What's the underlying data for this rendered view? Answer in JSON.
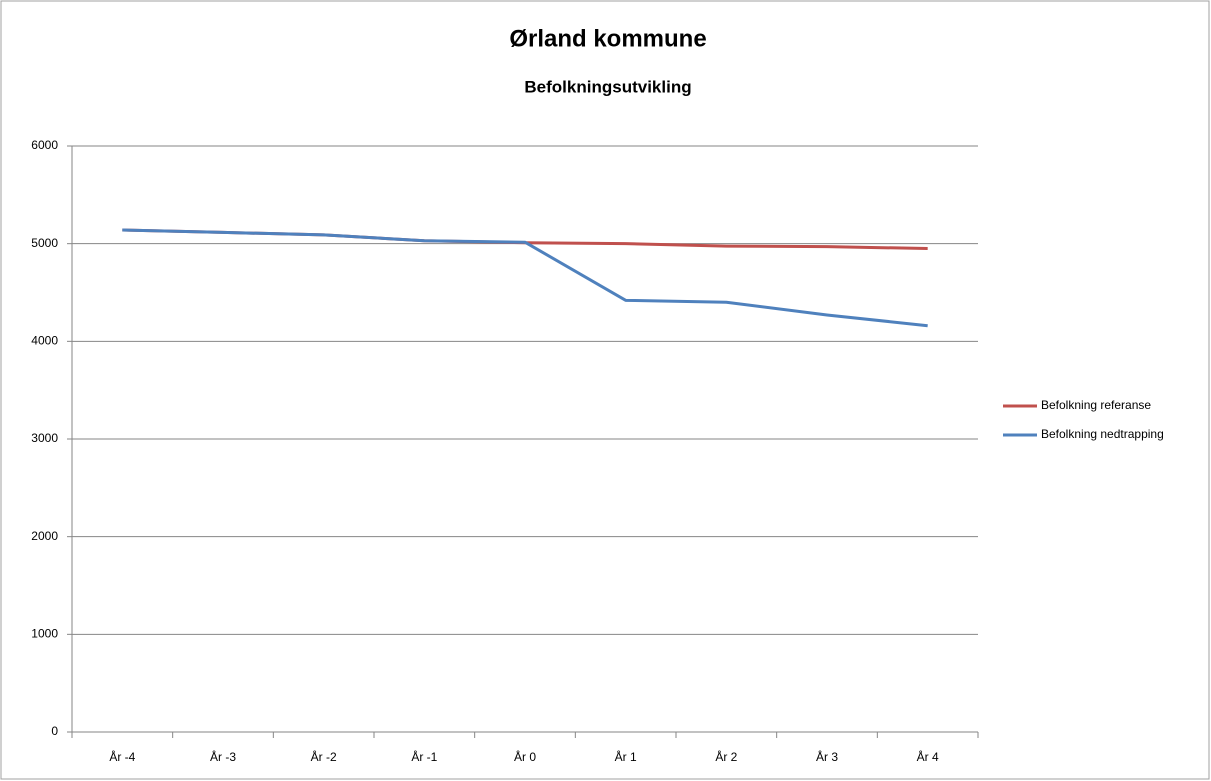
{
  "chart_data": {
    "type": "line",
    "title": "Ørland kommune",
    "subtitle": "Befolkningsutvikling",
    "categories": [
      "År -4",
      "År -3",
      "År -2",
      "År -1",
      "År 0",
      "År 1",
      "År 2",
      "År 3",
      "År 4"
    ],
    "series": [
      {
        "name": "Befolkning referanse",
        "color": "#c0504d",
        "values": [
          5140,
          5115,
          5090,
          5030,
          5010,
          5000,
          4975,
          4970,
          4950
        ]
      },
      {
        "name": "Befolkning nedtrapping",
        "color": "#4f81bd",
        "values": [
          5140,
          5115,
          5090,
          5030,
          5015,
          4420,
          4400,
          4270,
          4160
        ]
      }
    ],
    "ylim": [
      0,
      6000
    ],
    "yticks": [
      0,
      1000,
      2000,
      3000,
      4000,
      5000,
      6000
    ],
    "grid": true,
    "legend": "right"
  }
}
